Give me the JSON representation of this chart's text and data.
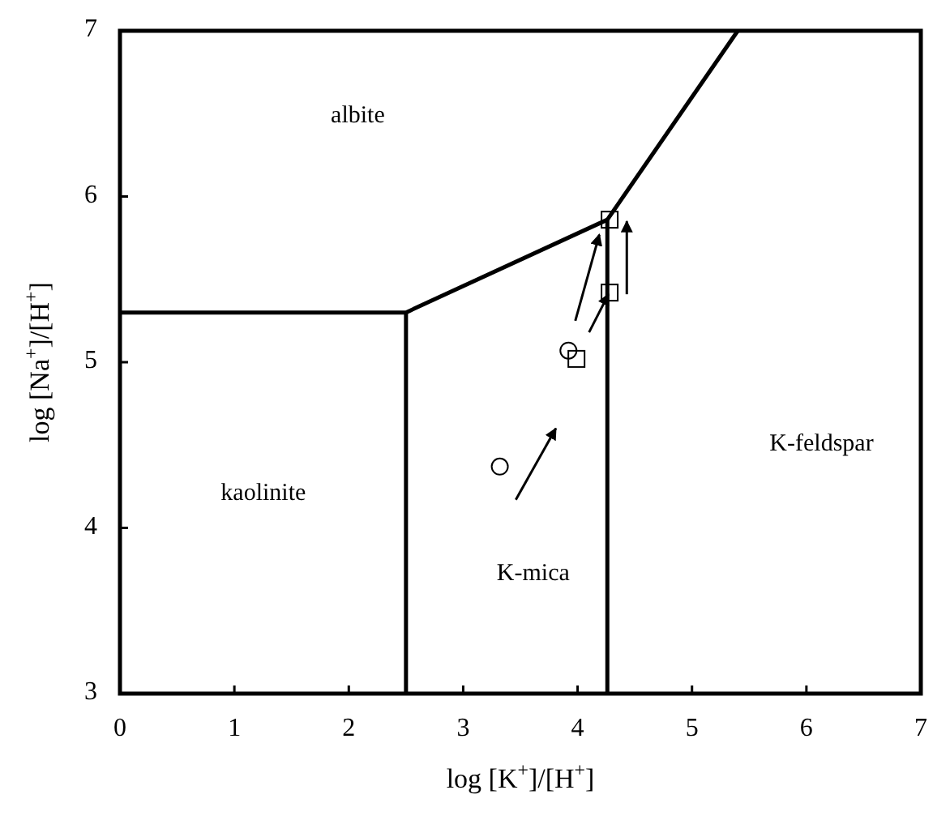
{
  "chart_data": {
    "type": "line",
    "xlabel": "log [K$^{+}$]/[H$^{+}$]",
    "ylabel": "log [Na$^{+}$]/[H$^{+}$]",
    "xlim": [
      0,
      7
    ],
    "ylim": [
      3,
      7
    ],
    "xticks": [
      0,
      1,
      2,
      3,
      4,
      5,
      6,
      7
    ],
    "yticks": [
      3,
      4,
      5,
      6,
      7
    ],
    "grid": false,
    "series": [
      {
        "color": "#000000",
        "marker": "none",
        "x": [
          0,
          2.5,
          4.26,
          5.4
        ],
        "values": [
          5.3,
          5.3,
          5.86,
          7
        ]
      },
      {
        "color": "#000000",
        "marker": "none",
        "x": [
          2.5,
          2.5
        ],
        "values": [
          3,
          5.3
        ]
      },
      {
        "color": "#000000",
        "marker": "none",
        "x": [
          4.26,
          4.26
        ],
        "values": [
          3,
          5.86
        ]
      },
      {
        "type": "scatter",
        "color": "#000000",
        "marker": "circle",
        "x": [
          3.32,
          3.92
        ],
        "values": [
          4.37,
          5.07
        ]
      },
      {
        "type": "scatter",
        "color": "#000000",
        "marker": "square",
        "x": [
          3.99,
          4.28,
          4.28
        ],
        "values": [
          5.02,
          5.42,
          5.86
        ]
      }
    ],
    "annotations": [
      "albite",
      "kaolinite",
      "K-mica",
      "K-feldspar"
    ]
  }
}
